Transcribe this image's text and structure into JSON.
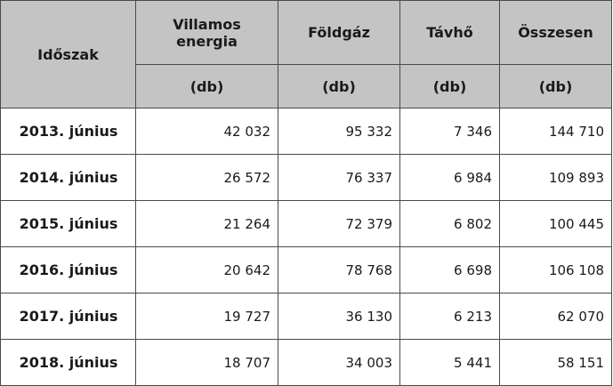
{
  "header": {
    "period_label": "Időszak",
    "columns": [
      {
        "label": "Villamos energia",
        "unit": "(db)"
      },
      {
        "label": "Földgáz",
        "unit": "(db)"
      },
      {
        "label": "Távhő",
        "unit": "(db)"
      },
      {
        "label": "Összesen",
        "unit": "(db)"
      }
    ]
  },
  "rows": [
    {
      "period": "2013. június",
      "values": [
        "42 032",
        "95 332",
        "7 346",
        "144 710"
      ]
    },
    {
      "period": "2014. június",
      "values": [
        "26 572",
        "76 337",
        "6 984",
        "109 893"
      ]
    },
    {
      "period": "2015. június",
      "values": [
        "21 264",
        "72 379",
        "6 802",
        "100 445"
      ]
    },
    {
      "period": "2016. június",
      "values": [
        "20 642",
        "78 768",
        "6 698",
        "106 108"
      ]
    },
    {
      "period": "2017. június",
      "values": [
        "19 727",
        "36 130",
        "6 213",
        "62 070"
      ]
    },
    {
      "period": "2018. június",
      "values": [
        "18 707",
        "34 003",
        "5 441",
        "58 151"
      ]
    }
  ]
}
